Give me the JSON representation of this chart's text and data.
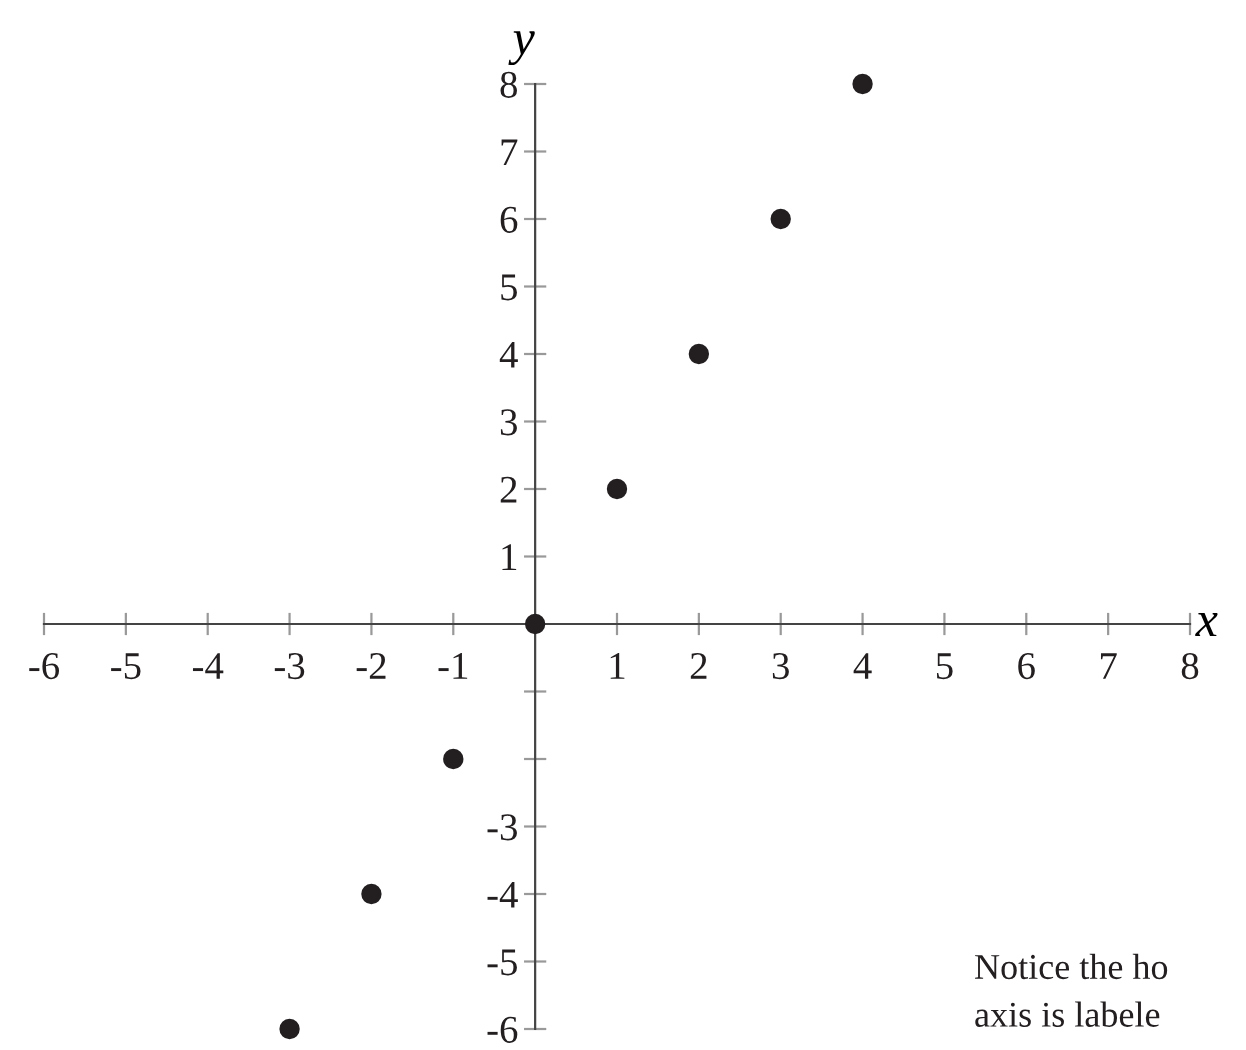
{
  "chart_data": {
    "type": "scatter",
    "xlabel": "x",
    "ylabel": "y",
    "x": [
      -3,
      -2,
      -1,
      0,
      1,
      2,
      3,
      4
    ],
    "series": [
      {
        "color": "#231f20",
        "values": [
          -6,
          -4,
          -2,
          0,
          2,
          4,
          6,
          8
        ]
      }
    ],
    "marker": "circle",
    "grid": false,
    "legend": false,
    "xlim": [
      -6,
      8
    ],
    "ylim": [
      -6,
      8
    ],
    "xticks": [
      -6,
      -5,
      -4,
      -3,
      -2,
      -1,
      1,
      2,
      3,
      4,
      5,
      6,
      7,
      8
    ],
    "yticks": [
      -6,
      -5,
      -4,
      -3,
      {
        "value": -2,
        "label": null
      },
      {
        "value": -1,
        "label": null
      },
      1,
      2,
      3,
      4,
      5,
      6,
      7,
      8
    ],
    "annotations": [
      "Notice the ho\naxis is labele"
    ]
  }
}
